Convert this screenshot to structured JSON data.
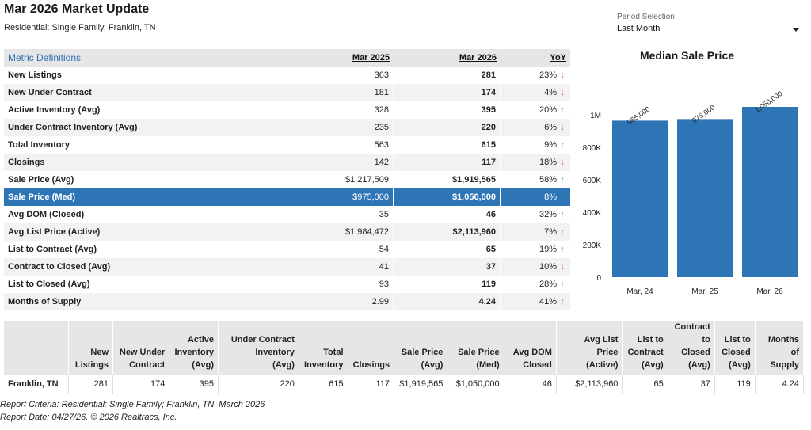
{
  "header": {
    "title": "Mar 2026 Market Update",
    "subtitle": "Residential: Single Family, Franklin, TN"
  },
  "period": {
    "label": "Period Selection",
    "value": "Last Month"
  },
  "metrics_table": {
    "headers": [
      "Metric Definitions",
      "Mar 2025",
      "Mar 2026",
      "YoY"
    ],
    "highlight_row": "Sale Price (Med)",
    "rows": [
      {
        "metric": "New Listings",
        "prev": "363",
        "curr": "281",
        "yoy": "23%",
        "dir": "down"
      },
      {
        "metric": "New Under Contract",
        "prev": "181",
        "curr": "174",
        "yoy": "4%",
        "dir": "down"
      },
      {
        "metric": "Active Inventory (Avg)",
        "prev": "328",
        "curr": "395",
        "yoy": "20%",
        "dir": "up"
      },
      {
        "metric": "Under Contract Inventory (Avg)",
        "prev": "235",
        "curr": "220",
        "yoy": "6%",
        "dir": "down"
      },
      {
        "metric": "Total Inventory",
        "prev": "563",
        "curr": "615",
        "yoy": "9%",
        "dir": "up"
      },
      {
        "metric": "Closings",
        "prev": "142",
        "curr": "117",
        "yoy": "18%",
        "dir": "down"
      },
      {
        "metric": "Sale Price (Avg)",
        "prev": "$1,217,509",
        "curr": "$1,919,565",
        "yoy": "58%",
        "dir": "up"
      },
      {
        "metric": "Sale Price (Med)",
        "prev": "$975,000",
        "curr": "$1,050,000",
        "yoy": "8%",
        "dir": "up"
      },
      {
        "metric": "Avg DOM (Closed)",
        "prev": "35",
        "curr": "46",
        "yoy": "32%",
        "dir": "up"
      },
      {
        "metric": "Avg List Price (Active)",
        "prev": "$1,984,472",
        "curr": "$2,113,960",
        "yoy": "7%",
        "dir": "up"
      },
      {
        "metric": "List to Contract (Avg)",
        "prev": "54",
        "curr": "65",
        "yoy": "19%",
        "dir": "up"
      },
      {
        "metric": "Contract to Closed (Avg)",
        "prev": "41",
        "curr": "37",
        "yoy": "10%",
        "dir": "down"
      },
      {
        "metric": "List to Closed (Avg)",
        "prev": "93",
        "curr": "119",
        "yoy": "28%",
        "dir": "up"
      },
      {
        "metric": "Months of Supply",
        "prev": "2.99",
        "curr": "4.24",
        "yoy": "41%",
        "dir": "up"
      }
    ]
  },
  "chart_data": {
    "type": "bar",
    "title": "Median Sale Price",
    "categories": [
      "Mar, 24",
      "Mar, 25",
      "Mar, 26"
    ],
    "values": [
      965000,
      975000,
      1050000
    ],
    "data_labels": [
      "965,000",
      "975,000",
      "1,050,000"
    ],
    "yticks": [
      0,
      200000,
      400000,
      600000,
      800000,
      1000000
    ],
    "ytick_labels": [
      "0",
      "200K",
      "400K",
      "600K",
      "800K",
      "1M"
    ],
    "ylim": [
      0,
      1050000
    ],
    "bar_color": "#2e75b6",
    "grid": false
  },
  "summary_table": {
    "headers": [
      "",
      "New Listings",
      "New Under Contract",
      "Active Inventory (Avg)",
      "Under Contract Inventory (Avg)",
      "Total Inventory",
      "Closings",
      "Sale Price (Avg)",
      "Sale Price (Med)",
      "Avg DOM Closed",
      "Avg List Price (Active)",
      "List to Contract (Avg)",
      "Contract to Closed (Avg)",
      "List to Closed (Avg)",
      "Months of Supply"
    ],
    "header_lines": [
      [
        ""
      ],
      [
        "New",
        "Listings"
      ],
      [
        "New Under",
        "Contract"
      ],
      [
        "Active",
        "Inventory",
        "(Avg)"
      ],
      [
        "Under Contract",
        "Inventory",
        "(Avg)"
      ],
      [
        "Total",
        "Inventory"
      ],
      [
        "Closings"
      ],
      [
        "Sale Price",
        "(Avg)"
      ],
      [
        "Sale Price",
        "(Med)"
      ],
      [
        "Avg DOM",
        "Closed"
      ],
      [
        "Avg List Price",
        "(Active)"
      ],
      [
        "List to",
        "Contract",
        "(Avg)"
      ],
      [
        "Contract",
        "to Closed",
        "(Avg)"
      ],
      [
        "List to",
        "Closed",
        "(Avg)"
      ],
      [
        "Months of",
        "Supply"
      ]
    ],
    "row": [
      "Franklin, TN",
      "281",
      "174",
      "395",
      "220",
      "615",
      "117",
      "$1,919,565",
      "$1,050,000",
      "46",
      "$2,113,960",
      "65",
      "37",
      "119",
      "4.24"
    ]
  },
  "footer": {
    "criteria": "Report Criteria: Residential: Single Family; Franklin, TN. March 2026",
    "date": "Report Date: 04/27/26. © 2026 Realtracs, Inc."
  },
  "colors": {
    "accent": "#2e75b6",
    "up": "#27ae60",
    "down": "#c0392b",
    "link": "#2f6fb0"
  }
}
